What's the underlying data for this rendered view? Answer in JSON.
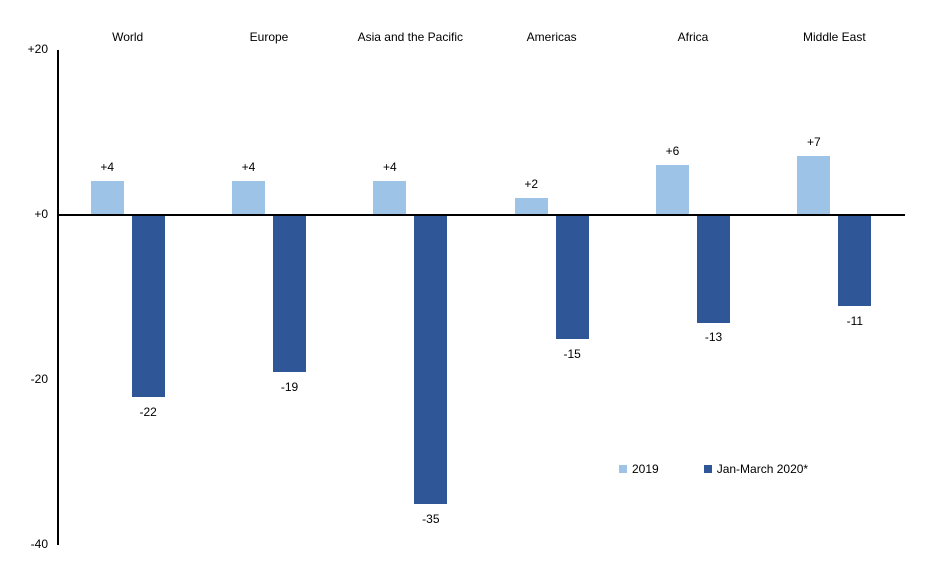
{
  "chart_data": {
    "type": "bar",
    "title": "",
    "xlabel": "",
    "ylabel": "",
    "grid": false,
    "legend_position": "inside-lower-right",
    "ylim": [
      -40,
      20
    ],
    "yticks": [
      {
        "value": 20,
        "label": "+20"
      },
      {
        "value": 0,
        "label": "+0"
      },
      {
        "value": -20,
        "label": "-20"
      },
      {
        "value": -40,
        "label": "-40"
      }
    ],
    "categories": [
      "World",
      "Europe",
      "Asia and the Pacific",
      "Americas",
      "Africa",
      "Middle East"
    ],
    "series": [
      {
        "name": "2019",
        "color": "#9DC3E6",
        "values": [
          4,
          4,
          4,
          2,
          6,
          7
        ],
        "labels": [
          "+4",
          "+4",
          "+4",
          "+2",
          "+6",
          "+7"
        ]
      },
      {
        "name": "Jan-March 2020*",
        "color": "#2F5696",
        "values": [
          -22,
          -19,
          -35,
          -15,
          -13,
          -11
        ],
        "labels": [
          "-22",
          "-19",
          "-35",
          "-15",
          "-13",
          "-11"
        ]
      }
    ]
  },
  "colors": {
    "axis": "#000000",
    "text": "#000000",
    "background": "#FFFFFF"
  }
}
